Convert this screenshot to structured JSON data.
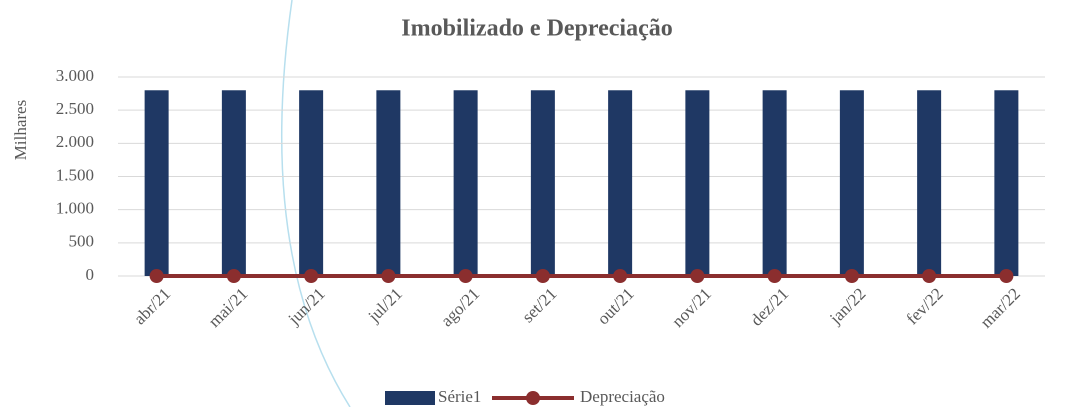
{
  "chart_data": {
    "type": "bar",
    "title": "Imobilizado e Depreciação",
    "y_label": "Milhares",
    "categories": [
      "abr/21",
      "mai/21",
      "jun/21",
      "jul/21",
      "ago/21",
      "set/21",
      "out/21",
      "nov/21",
      "dez/21",
      "jan/22",
      "fev/22",
      "mar/22"
    ],
    "series": [
      {
        "name": "Série1",
        "type": "bar",
        "color": "#1f3864",
        "values": [
          2800,
          2800,
          2800,
          2800,
          2800,
          2800,
          2800,
          2800,
          2800,
          2800,
          2800,
          2800
        ]
      },
      {
        "name": "Depreciação",
        "type": "line",
        "color": "#8b2e2e",
        "values": [
          0,
          0,
          0,
          0,
          0,
          0,
          0,
          0,
          0,
          0,
          0,
          0
        ]
      }
    ],
    "ylim": [
      0,
      3000
    ],
    "yticks": [
      0,
      500,
      {
        "value": 1000,
        "label": "1.000"
      },
      {
        "value": 1500,
        "label": "1.500"
      },
      {
        "value": 2000,
        "label": "2.000"
      },
      {
        "value": 2500,
        "label": "2.500"
      },
      {
        "value": 3000,
        "label": "3.000"
      }
    ],
    "grid": true,
    "legend": "bottom"
  }
}
